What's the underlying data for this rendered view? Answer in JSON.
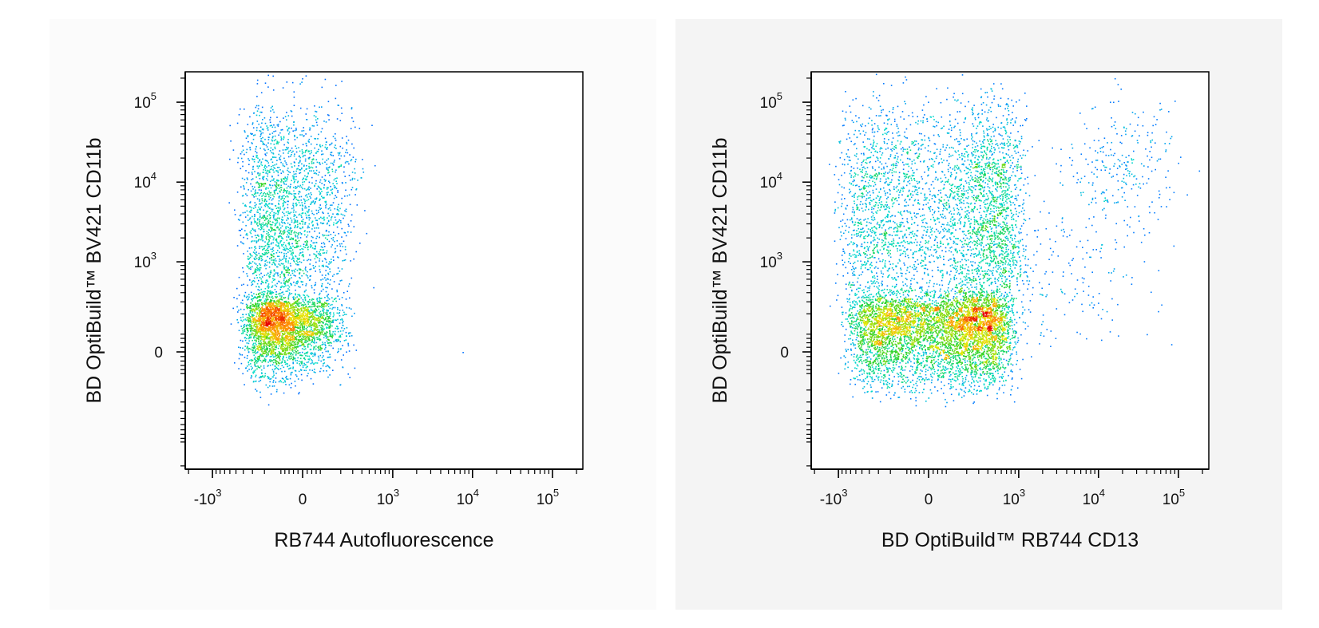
{
  "chart_data": [
    {
      "type": "scatter",
      "density_colored": true,
      "scale_x": "biexponential",
      "scale_y": "biexponential",
      "xlabel": "RB744 Autofluorescence",
      "ylabel": "BD OptiBuild™ BV421 CD11b",
      "x_ticks": [
        {
          "value": -1000,
          "label": "-10",
          "sup": "3"
        },
        {
          "value": 0,
          "label": "0",
          "sup": ""
        },
        {
          "value": 1000,
          "label": "10",
          "sup": "3"
        },
        {
          "value": 10000,
          "label": "10",
          "sup": "4"
        },
        {
          "value": 100000,
          "label": "10",
          "sup": "5"
        }
      ],
      "y_ticks": [
        {
          "value": 0,
          "label": "0",
          "sup": ""
        },
        {
          "value": 1000,
          "label": "10",
          "sup": "3"
        },
        {
          "value": 10000,
          "label": "10",
          "sup": "4"
        },
        {
          "value": 100000,
          "label": "10",
          "sup": "5"
        }
      ],
      "xlim": [
        -2200,
        240000
      ],
      "ylim": [
        -2200,
        240000
      ],
      "populations": [
        {
          "x_center": -100,
          "x_spread": 130,
          "y_center": 120,
          "y_spread": 110,
          "n": 3200
        },
        {
          "x_center": -80,
          "x_spread": 150,
          "y_center": 1500,
          "y_spread": 0.55,
          "n": 1600,
          "log_y": true
        },
        {
          "x_center": -60,
          "x_spread": 180,
          "y_center": 15000,
          "y_spread": 0.45,
          "n": 900,
          "log_y": true
        }
      ],
      "outliers": [
        [
          7500,
          0
        ]
      ]
    },
    {
      "type": "scatter",
      "density_colored": true,
      "scale_x": "biexponential",
      "scale_y": "biexponential",
      "xlabel": "BD OptiBuild™ RB744 CD13",
      "ylabel": "BD OptiBuild™ BV421 CD11b",
      "x_ticks": [
        {
          "value": -1000,
          "label": "-10",
          "sup": "3"
        },
        {
          "value": 0,
          "label": "0",
          "sup": ""
        },
        {
          "value": 1000,
          "label": "10",
          "sup": "3"
        },
        {
          "value": 10000,
          "label": "10",
          "sup": "4"
        },
        {
          "value": 100000,
          "label": "10",
          "sup": "5"
        }
      ],
      "y_ticks": [
        {
          "value": 0,
          "label": "0",
          "sup": ""
        },
        {
          "value": 1000,
          "label": "10",
          "sup": "3"
        },
        {
          "value": 10000,
          "label": "10",
          "sup": "4"
        },
        {
          "value": 100000,
          "label": "10",
          "sup": "5"
        }
      ],
      "xlim": [
        -2200,
        240000
      ],
      "ylim": [
        -2200,
        240000
      ],
      "populations": [
        {
          "x_center": 50,
          "x_spread": 320,
          "y_center": 100,
          "y_spread": 130,
          "n": 5500
        },
        {
          "x_center": 100,
          "x_spread": 420,
          "y_center": 1500,
          "y_spread": 0.5,
          "n": 2200,
          "log_y": true
        },
        {
          "x_center": 120,
          "x_spread": 450,
          "y_center": 15000,
          "y_spread": 0.45,
          "n": 1600,
          "log_y": true
        },
        {
          "x_center": 20000,
          "x_spread": 0.35,
          "y_center": 15000,
          "y_spread": 0.4,
          "n": 260,
          "log_x": true,
          "log_y": true
        },
        {
          "x_center": 3000,
          "x_spread": 0.6,
          "y_center": 600,
          "y_spread": 0.6,
          "n": 220,
          "log_x": true,
          "log_y": true
        }
      ],
      "outliers": []
    }
  ]
}
